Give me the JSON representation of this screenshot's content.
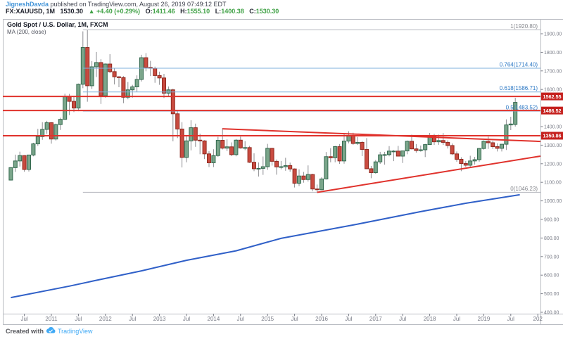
{
  "header": {
    "username": "JigneshDavda",
    "published": " published on TradingView.com, August 26, 2019 07:49:12 EDT",
    "symbol": "FX:XAUUSD, 1M",
    "last": "1530.30",
    "change": "▲ +4.40 (+0.29%)",
    "o_label": "O:",
    "o": "1411.46",
    "h_label": "H:",
    "h": "1555.10",
    "l_label": "L:",
    "l": "1400.38",
    "c_label": "C:",
    "c": "1530.30"
  },
  "legend": {
    "title": "Gold Spot / U.S. Dollar, 1M, FXCM",
    "ma": "MA (200, close)"
  },
  "footer": {
    "created_with": "Created with",
    "brand": "TradingView"
  },
  "colors": {
    "up_fill": "#7aa58a",
    "up_border": "#33694e",
    "down_fill": "#c94b40",
    "down_border": "#90291f",
    "wick": "#8c8c90",
    "ma": "#3060c8",
    "sr_line": "#e0322c",
    "badge": "#c5211e",
    "fib_blue_line": "#7fb1de",
    "fib_blue_text": "#2a77c4",
    "fib_grey_line": "#b2b5bc",
    "fib_grey_text": "#85878d",
    "frame": "#b9bcc2",
    "axis_text": "#787b86",
    "green": "#3fa145",
    "link": "#4294d8",
    "brand": "#3fa9f5"
  },
  "chart_data": {
    "type": "candlestick",
    "title": "Gold Spot / U.S. Dollar, 1M, FXCM",
    "timeframe": "1M",
    "start_month": "2010-04",
    "grid": false,
    "ylim": [
      392,
      1976
    ],
    "y_axis": {
      "tick_values": [
        1900,
        1800,
        1700,
        1600,
        1400,
        1300,
        1200,
        1100,
        1000,
        900,
        800,
        700,
        600,
        500,
        400
      ],
      "covered_tick": 1500
    },
    "x_axis": {
      "labels": [
        [
          "Jul",
          3
        ],
        [
          "2011",
          9
        ],
        [
          "Jul",
          15
        ],
        [
          "2012",
          21
        ],
        [
          "Jul",
          27
        ],
        [
          "2013",
          33
        ],
        [
          "Jul",
          39
        ],
        [
          "2014",
          45
        ],
        [
          "Jul",
          51
        ],
        [
          "2015",
          57
        ],
        [
          "Jul",
          63
        ],
        [
          "2016",
          69
        ],
        [
          "Jul",
          75
        ],
        [
          "2017",
          81
        ],
        [
          "Jul",
          87
        ],
        [
          "2018",
          93
        ],
        [
          "Jul",
          99
        ],
        [
          "2019",
          105
        ],
        [
          "Jul",
          111
        ],
        [
          "202",
          117
        ]
      ]
    },
    "candles": [
      [
        1112,
        1181,
        1110,
        1179
      ],
      [
        1179,
        1249,
        1156,
        1215
      ],
      [
        1215,
        1265,
        1185,
        1244
      ],
      [
        1244,
        1246,
        1157,
        1169
      ],
      [
        1169,
        1248,
        1158,
        1247
      ],
      [
        1247,
        1313,
        1240,
        1307
      ],
      [
        1307,
        1388,
        1296,
        1346
      ],
      [
        1346,
        1424,
        1329,
        1385
      ],
      [
        1385,
        1431,
        1361,
        1421
      ],
      [
        1421,
        1424,
        1308,
        1333
      ],
      [
        1333,
        1416,
        1325,
        1411
      ],
      [
        1411,
        1448,
        1382,
        1439
      ],
      [
        1439,
        1577,
        1437,
        1564
      ],
      [
        1564,
        1576,
        1462,
        1536
      ],
      [
        1536,
        1559,
        1478,
        1500
      ],
      [
        1500,
        1632,
        1483,
        1628
      ],
      [
        1628,
        1913,
        1607,
        1826
      ],
      [
        1826,
        1920.8,
        1534,
        1620
      ],
      [
        1620,
        1753,
        1603,
        1722
      ],
      [
        1722,
        1802,
        1667,
        1745
      ],
      [
        1745,
        1763,
        1522,
        1566
      ],
      [
        1566,
        1740,
        1556,
        1737
      ],
      [
        1737,
        1790,
        1688,
        1696
      ],
      [
        1696,
        1714,
        1627,
        1668
      ],
      [
        1668,
        1672,
        1612,
        1664
      ],
      [
        1664,
        1672,
        1526,
        1558
      ],
      [
        1558,
        1640,
        1547,
        1598
      ],
      [
        1598,
        1625,
        1556,
        1614
      ],
      [
        1614,
        1676,
        1588,
        1654
      ],
      [
        1654,
        1787,
        1643,
        1771
      ],
      [
        1771,
        1796,
        1698,
        1719
      ],
      [
        1719,
        1754,
        1672,
        1714
      ],
      [
        1714,
        1723,
        1636,
        1675
      ],
      [
        1675,
        1696,
        1625,
        1662
      ],
      [
        1662,
        1684,
        1554,
        1580
      ],
      [
        1580,
        1616,
        1564,
        1598
      ],
      [
        1598,
        1604,
        1321,
        1469
      ],
      [
        1469,
        1488,
        1338,
        1387
      ],
      [
        1387,
        1424,
        1180,
        1234
      ],
      [
        1234,
        1348,
        1208,
        1323
      ],
      [
        1323,
        1434,
        1272,
        1394
      ],
      [
        1394,
        1416,
        1291,
        1327
      ],
      [
        1327,
        1362,
        1251,
        1323
      ],
      [
        1323,
        1327,
        1225,
        1253
      ],
      [
        1253,
        1268,
        1182,
        1205
      ],
      [
        1205,
        1278,
        1182,
        1244
      ],
      [
        1244,
        1345,
        1237,
        1326
      ],
      [
        1326,
        1392,
        1277,
        1284
      ],
      [
        1284,
        1331,
        1268,
        1291
      ],
      [
        1291,
        1315,
        1241,
        1249
      ],
      [
        1249,
        1333,
        1240,
        1327
      ],
      [
        1327,
        1346,
        1281,
        1285
      ],
      [
        1285,
        1322,
        1273,
        1287
      ],
      [
        1287,
        1296,
        1204,
        1208
      ],
      [
        1208,
        1256,
        1160,
        1173
      ],
      [
        1173,
        1207,
        1131,
        1175
      ],
      [
        1175,
        1239,
        1140,
        1184
      ],
      [
        1184,
        1307,
        1167,
        1283
      ],
      [
        1283,
        1285,
        1190,
        1213
      ],
      [
        1213,
        1223,
        1141,
        1183
      ],
      [
        1183,
        1215,
        1170,
        1184
      ],
      [
        1184,
        1232,
        1162,
        1190
      ],
      [
        1190,
        1206,
        1157,
        1172
      ],
      [
        1172,
        1175,
        1072,
        1095
      ],
      [
        1095,
        1170,
        1080,
        1134
      ],
      [
        1134,
        1156,
        1098,
        1115
      ],
      [
        1115,
        1191,
        1104,
        1142
      ],
      [
        1142,
        1146,
        1052,
        1064
      ],
      [
        1064,
        1088,
        1046.23,
        1060
      ],
      [
        1060,
        1127,
        1058,
        1118
      ],
      [
        1118,
        1263,
        1115,
        1238
      ],
      [
        1238,
        1284,
        1208,
        1232
      ],
      [
        1232,
        1296,
        1208,
        1292
      ],
      [
        1292,
        1306,
        1199,
        1215
      ],
      [
        1215,
        1359,
        1200,
        1322
      ],
      [
        1322,
        1375,
        1310,
        1351
      ],
      [
        1351,
        1367,
        1302,
        1309
      ],
      [
        1309,
        1344,
        1301,
        1315
      ],
      [
        1315,
        1322,
        1241,
        1277
      ],
      [
        1277,
        1338,
        1171,
        1173
      ],
      [
        1173,
        1188,
        1122,
        1152
      ],
      [
        1152,
        1220,
        1146,
        1210
      ],
      [
        1210,
        1264,
        1199,
        1248
      ],
      [
        1248,
        1264,
        1195,
        1249
      ],
      [
        1249,
        1295,
        1240,
        1268
      ],
      [
        1268,
        1274,
        1214,
        1268
      ],
      [
        1268,
        1296,
        1240,
        1241
      ],
      [
        1241,
        1270,
        1204,
        1269
      ],
      [
        1269,
        1325,
        1251,
        1321
      ],
      [
        1321,
        1357,
        1277,
        1280
      ],
      [
        1280,
        1306,
        1260,
        1271
      ],
      [
        1271,
        1298,
        1265,
        1275
      ],
      [
        1275,
        1307,
        1236,
        1303
      ],
      [
        1303,
        1366,
        1302,
        1345
      ],
      [
        1345,
        1361,
        1301,
        1318
      ],
      [
        1318,
        1357,
        1302,
        1325
      ],
      [
        1325,
        1365,
        1301,
        1315
      ],
      [
        1315,
        1326,
        1282,
        1298
      ],
      [
        1298,
        1309,
        1247,
        1253
      ],
      [
        1253,
        1266,
        1211,
        1224
      ],
      [
        1224,
        1235,
        1160,
        1201
      ],
      [
        1201,
        1214,
        1183,
        1192
      ],
      [
        1192,
        1243,
        1183,
        1215
      ],
      [
        1215,
        1237,
        1196,
        1222
      ],
      [
        1222,
        1285,
        1211,
        1282
      ],
      [
        1282,
        1326,
        1276,
        1321
      ],
      [
        1321,
        1346,
        1280,
        1313
      ],
      [
        1313,
        1324,
        1280,
        1292
      ],
      [
        1292,
        1310,
        1266,
        1283
      ],
      [
        1283,
        1307,
        1266,
        1305
      ],
      [
        1305,
        1439,
        1274,
        1409
      ],
      [
        1409,
        1453,
        1381,
        1414
      ],
      [
        1411.46,
        1555.1,
        1400.38,
        1530.3
      ]
    ],
    "ma200": {
      "name": "MA (200, close)",
      "points": [
        [
          0,
          479
        ],
        [
          13,
          541
        ],
        [
          18,
          567
        ],
        [
          29,
          623
        ],
        [
          39,
          680
        ],
        [
          50,
          731
        ],
        [
          60,
          798
        ],
        [
          76,
          870
        ],
        [
          91,
          942
        ],
        [
          101,
          987
        ],
        [
          113,
          1033
        ]
      ]
    },
    "fib": {
      "start_month_index": 16,
      "levels": [
        {
          "label": "1(1920.80)",
          "price": 1920.8,
          "color": "grey"
        },
        {
          "label": "0.764(1714.40)",
          "price": 1714.4,
          "color": "blue"
        },
        {
          "label": "0.618(1586.71)",
          "price": 1586.71,
          "color": "blue"
        },
        {
          "label": "0.5(1483.52)",
          "price": 1483.52,
          "color": "blue"
        },
        {
          "label": "0(1046.23)",
          "price": 1046.23,
          "color": "grey"
        }
      ]
    },
    "hlines": [
      {
        "label": "1562.55",
        "price": 1562.55
      },
      {
        "label": "1486.52",
        "price": 1486.52
      },
      {
        "label": "1350.86",
        "price": 1350.86
      }
    ],
    "trendlines": [
      {
        "name": "descending-resistance",
        "m1": 47,
        "p1": 1388,
        "p2_at_right": 1320
      },
      {
        "name": "ascending-support",
        "m1": 68,
        "p1": 1046,
        "p2_at_right": 1241
      }
    ]
  }
}
